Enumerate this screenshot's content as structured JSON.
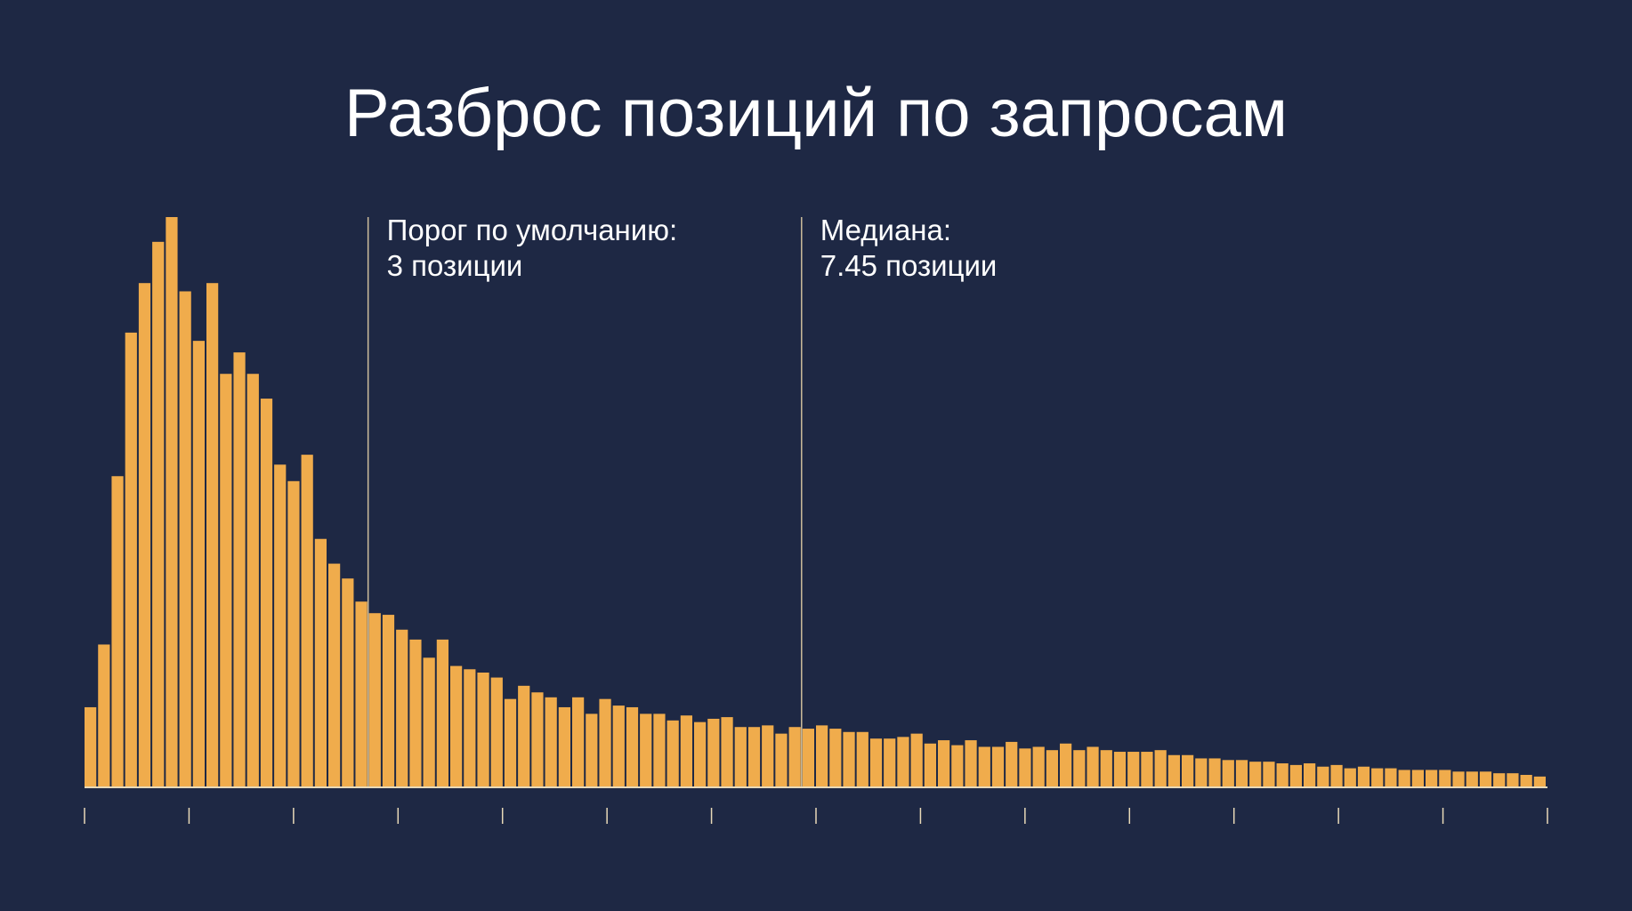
{
  "chart_data": {
    "type": "bar",
    "title": "Разброс позиций по запросам",
    "xlabel": "",
    "ylabel": "",
    "grid": false,
    "colors": {
      "background": "#1e2844",
      "bar": "#f0ac4c",
      "axis": "#e8d9b8",
      "marker_line": "#cdbd9c",
      "text": "#ffffff"
    },
    "bins": 108,
    "tick_count": 15,
    "values": [
      48,
      86,
      188,
      275,
      305,
      330,
      345,
      300,
      270,
      305,
      250,
      263,
      250,
      235,
      195,
      185,
      201,
      150,
      135,
      126,
      112,
      105,
      104,
      95,
      89,
      78,
      89,
      73,
      71,
      69,
      66,
      53,
      61,
      57,
      54,
      48,
      54,
      44,
      53,
      49,
      48,
      44,
      44,
      40,
      43,
      39,
      41,
      42,
      36,
      36,
      37,
      32,
      36,
      35,
      37,
      35,
      33,
      33,
      29,
      29,
      30,
      32,
      26,
      28,
      25,
      28,
      24,
      24,
      27,
      23,
      24,
      22,
      26,
      22,
      24,
      22,
      21,
      21,
      21,
      22,
      19,
      19,
      17,
      17,
      16,
      16,
      15,
      15,
      14,
      13,
      14,
      12,
      13,
      11,
      12,
      11,
      11,
      10,
      10,
      10,
      10,
      9,
      9,
      9,
      8,
      8,
      7,
      6
    ],
    "annotations": [
      {
        "label_lines": [
          "Порог по умолчанию:",
          "3 позиции"
        ],
        "bin_position": 21
      },
      {
        "label_lines": [
          "Медиана:",
          "7.45 позиции"
        ],
        "bin_position": 53
      }
    ]
  }
}
